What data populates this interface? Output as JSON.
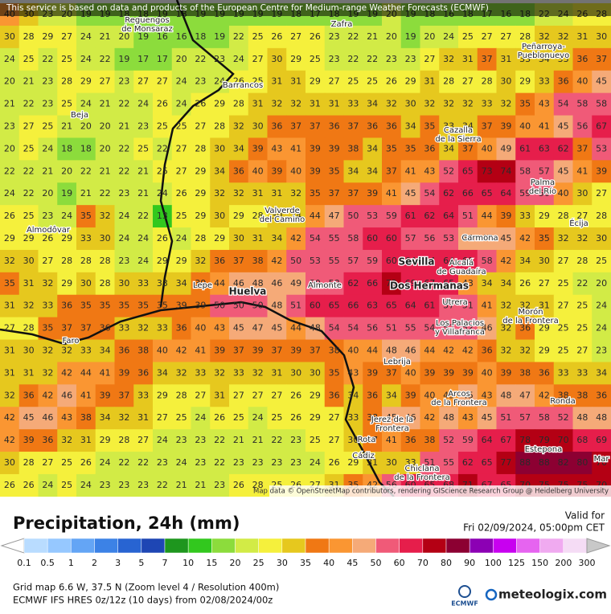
{
  "header": {
    "notice": "This service is based on data and products of the European Centre for Medium-range Weather Forecasts (ECMWF)"
  },
  "map": {
    "grid": [
      [
        40,
        30,
        23,
        20,
        19,
        19,
        18,
        18,
        19,
        18,
        19,
        19,
        19,
        19,
        19,
        18,
        17,
        18,
        19,
        19,
        20,
        19,
        18,
        16,
        18,
        17,
        16,
        18,
        22,
        24,
        26,
        28
      ],
      [
        30,
        28,
        29,
        27,
        24,
        21,
        20,
        19,
        16,
        16,
        18,
        19,
        22,
        25,
        26,
        27,
        26,
        23,
        22,
        21,
        20,
        19,
        20,
        24,
        25,
        27,
        27,
        28,
        32,
        32,
        31,
        30
      ],
      [
        24,
        25,
        22,
        25,
        24,
        22,
        19,
        17,
        17,
        20,
        22,
        23,
        24,
        27,
        30,
        29,
        25,
        23,
        22,
        22,
        23,
        23,
        27,
        32,
        31,
        37,
        31,
        33,
        34,
        33,
        36,
        37
      ],
      [
        20,
        21,
        23,
        28,
        29,
        27,
        23,
        27,
        27,
        24,
        23,
        24,
        26,
        25,
        31,
        31,
        29,
        27,
        25,
        25,
        26,
        29,
        31,
        28,
        27,
        28,
        30,
        29,
        33,
        36,
        40,
        45
      ],
      [
        21,
        22,
        23,
        25,
        24,
        21,
        22,
        24,
        26,
        24,
        26,
        29,
        28,
        31,
        32,
        32,
        31,
        31,
        33,
        34,
        32,
        30,
        32,
        32,
        32,
        33,
        32,
        35,
        43,
        54,
        58,
        58
      ],
      [
        23,
        27,
        25,
        21,
        20,
        20,
        21,
        23,
        25,
        25,
        27,
        28,
        32,
        30,
        36,
        37,
        37,
        36,
        37,
        36,
        36,
        34,
        35,
        33,
        34,
        37,
        39,
        40,
        41,
        45,
        56,
        67
      ],
      [
        20,
        25,
        24,
        18,
        18,
        20,
        22,
        25,
        22,
        27,
        28,
        30,
        34,
        39,
        43,
        41,
        39,
        39,
        38,
        34,
        35,
        35,
        36,
        34,
        37,
        40,
        49,
        61,
        63,
        62,
        37,
        53
      ],
      [
        22,
        22,
        21,
        20,
        22,
        21,
        22,
        21,
        25,
        27,
        29,
        34,
        36,
        40,
        39,
        40,
        39,
        35,
        34,
        34,
        37,
        41,
        43,
        52,
        65,
        73,
        74,
        58,
        57,
        45,
        41,
        39
      ],
      [
        24,
        22,
        20,
        19,
        21,
        22,
        23,
        21,
        24,
        26,
        29,
        32,
        32,
        31,
        31,
        32,
        35,
        37,
        37,
        39,
        41,
        45,
        54,
        62,
        66,
        65,
        64,
        59,
        50,
        40,
        30,
        27
      ],
      [
        26,
        25,
        23,
        24,
        35,
        32,
        24,
        22,
        13,
        25,
        29,
        30,
        29,
        28,
        30,
        34,
        44,
        47,
        50,
        53,
        59,
        61,
        62,
        64,
        51,
        44,
        39,
        33,
        29,
        28,
        27,
        28
      ],
      [
        29,
        29,
        26,
        29,
        33,
        30,
        24,
        24,
        26,
        24,
        28,
        29,
        30,
        31,
        34,
        42,
        54,
        55,
        58,
        60,
        60,
        57,
        56,
        53,
        49,
        47,
        45,
        42,
        35,
        32,
        32,
        30
      ],
      [
        32,
        30,
        27,
        28,
        28,
        28,
        23,
        24,
        29,
        29,
        32,
        36,
        37,
        38,
        42,
        50,
        53,
        55,
        57,
        59,
        60,
        64,
        64,
        64,
        60,
        58,
        42,
        34,
        30,
        27,
        28,
        25
      ],
      [
        35,
        31,
        32,
        29,
        30,
        28,
        30,
        33,
        33,
        34,
        39,
        44,
        46,
        48,
        46,
        49,
        50,
        58,
        62,
        66,
        72,
        69,
        67,
        65,
        43,
        34,
        34,
        26,
        27,
        25,
        22,
        20
      ],
      [
        31,
        32,
        33,
        36,
        35,
        35,
        35,
        35,
        35,
        39,
        39,
        50,
        50,
        50,
        48,
        51,
        60,
        65,
        66,
        63,
        65,
        64,
        61,
        57,
        51,
        41,
        32,
        32,
        31,
        27,
        25,
        24
      ],
      [
        27,
        28,
        35,
        37,
        37,
        36,
        33,
        32,
        33,
        36,
        40,
        43,
        45,
        47,
        45,
        44,
        48,
        54,
        54,
        56,
        51,
        55,
        54,
        52,
        52,
        46,
        32,
        36,
        29,
        25,
        25,
        24
      ],
      [
        31,
        30,
        32,
        32,
        33,
        34,
        36,
        38,
        40,
        42,
        41,
        39,
        37,
        39,
        37,
        39,
        37,
        38,
        40,
        44,
        48,
        46,
        44,
        42,
        42,
        36,
        32,
        32,
        29,
        25,
        27,
        23
      ],
      [
        31,
        31,
        32,
        42,
        44,
        41,
        39,
        36,
        34,
        32,
        33,
        32,
        33,
        32,
        31,
        30,
        30,
        35,
        43,
        39,
        37,
        40,
        39,
        39,
        39,
        40,
        39,
        38,
        36,
        33,
        33,
        34
      ],
      [
        32,
        36,
        42,
        46,
        41,
        39,
        37,
        33,
        29,
        28,
        27,
        31,
        27,
        27,
        27,
        26,
        29,
        36,
        34,
        36,
        34,
        39,
        40,
        43,
        45,
        43,
        48,
        47,
        42,
        38,
        38,
        36
      ],
      [
        42,
        45,
        46,
        43,
        38,
        34,
        32,
        31,
        27,
        25,
        24,
        26,
        25,
        24,
        25,
        26,
        29,
        27,
        33,
        38,
        45,
        46,
        42,
        48,
        43,
        45,
        51,
        57,
        58,
        52,
        48,
        48
      ],
      [
        42,
        39,
        36,
        32,
        31,
        29,
        28,
        27,
        24,
        23,
        23,
        22,
        21,
        21,
        22,
        23,
        25,
        27,
        30,
        37,
        41,
        36,
        38,
        52,
        59,
        64,
        67,
        78,
        79,
        70,
        68,
        69
      ],
      [
        30,
        28,
        27,
        25,
        26,
        24,
        22,
        22,
        23,
        24,
        23,
        22,
        23,
        23,
        23,
        23,
        24,
        26,
        29,
        31,
        30,
        33,
        51,
        55,
        62,
        65,
        77,
        88,
        88,
        82,
        80,
        70
      ],
      [
        26,
        26,
        24,
        25,
        24,
        23,
        23,
        23,
        22,
        21,
        21,
        23,
        26,
        28,
        25,
        26,
        27,
        31,
        35,
        42,
        56,
        60,
        65,
        68,
        71,
        67,
        65,
        70,
        75,
        75,
        75,
        70
      ]
    ],
    "places": [
      {
        "lines": [
          "Reguengos",
          "de Monsaraz"
        ]
      },
      {
        "lines": [
          "Zafra"
        ]
      },
      {
        "lines": [
          "Peñarroya-",
          "Pueblonuevo"
        ]
      },
      {
        "lines": [
          "Barrancos"
        ]
      },
      {
        "lines": [
          "Beja"
        ]
      },
      {
        "lines": [
          "Cazalla",
          "de la Sierra"
        ]
      },
      {
        "lines": [
          "Palma",
          "del Río"
        ]
      },
      {
        "lines": [
          "Valverde",
          "del Camino"
        ]
      },
      {
        "lines": [
          "Almodôvar"
        ]
      },
      {
        "lines": [
          "Carmona"
        ]
      },
      {
        "lines": [
          "Écija"
        ]
      },
      {
        "lines": [
          "Sevilla"
        ]
      },
      {
        "lines": [
          "Alcalá",
          "de Guadaíra"
        ]
      },
      {
        "lines": [
          "Lepe"
        ]
      },
      {
        "lines": [
          "Huelva"
        ]
      },
      {
        "lines": [
          "Almonte"
        ]
      },
      {
        "lines": [
          "Dos Hermanas"
        ]
      },
      {
        "lines": [
          "Utrera"
        ]
      },
      {
        "lines": [
          "Morón",
          "de la Frontera"
        ]
      },
      {
        "lines": [
          "Los Palacios",
          "y Villafranca"
        ]
      },
      {
        "lines": [
          "Faro"
        ]
      },
      {
        "lines": [
          "Lebrija"
        ]
      },
      {
        "lines": [
          "Arcos",
          "de la Frontera"
        ]
      },
      {
        "lines": [
          "Ronda"
        ]
      },
      {
        "lines": [
          "Jerez de la",
          "Frontera"
        ]
      },
      {
        "lines": [
          "Rota"
        ]
      },
      {
        "lines": [
          "Cádiz"
        ]
      },
      {
        "lines": [
          "Chiclana",
          "de la Frontera"
        ]
      },
      {
        "lines": [
          "Estepona"
        ]
      },
      {
        "lines": [
          "Mar"
        ]
      }
    ],
    "attribution": "Map data © OpenStreetMap contributors, rendering GIScience Research Group @ Heidelberg University"
  },
  "footer": {
    "title": "Precipitation, 24h (mm)",
    "valid_label": "Valid for",
    "valid_time": "Fri 02/09/2024, 05:00pm CET",
    "grid_info": "Grid map 6.6 W, 37.5 N (Zoom level 4 / Resolution 400m)",
    "model_info": "ECMWF IFS HRES 0z/12z (10 days) from 02/08/2024/00z",
    "ecmwf": "ECMWF",
    "brand": "meteologix.com"
  },
  "legend": {
    "labels": [
      0.1,
      0.5,
      1,
      2,
      3,
      5,
      7,
      10,
      15,
      20,
      25,
      30,
      35,
      40,
      45,
      50,
      60,
      70,
      80,
      90,
      100,
      125,
      150,
      200,
      300
    ],
    "colors": [
      "#ffffff",
      "#b9dcff",
      "#96c8ff",
      "#64a5f5",
      "#3c82e6",
      "#2864d2",
      "#1e46b4",
      "#1e961e",
      "#32c81e",
      "#8cdc3c",
      "#d2eb46",
      "#f5f03c",
      "#e6c81e",
      "#f07814",
      "#fa9632",
      "#f5aa78",
      "#f05a78",
      "#e61e4b",
      "#b40014",
      "#8c0032",
      "#8c00b4",
      "#c800f0",
      "#e664f0",
      "#f0aaf0",
      "#f5dcf5",
      "#c8c8c8"
    ]
  }
}
